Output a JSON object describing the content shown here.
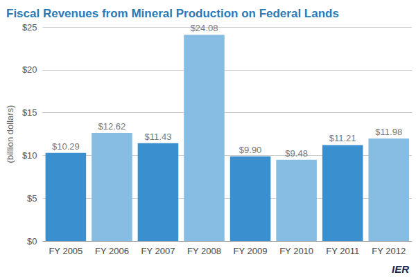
{
  "chart_data": {
    "type": "bar",
    "title": "Fiscal Revenues from Mineral Production on Federal Lands",
    "y_label": "(billion dollars)",
    "categories": [
      "FY 2005",
      "FY 2006",
      "FY 2007",
      "FY 2008",
      "FY 2009",
      "FY 2010",
      "FY 2011",
      "FY 2012"
    ],
    "values": [
      10.29,
      12.62,
      11.43,
      24.08,
      9.9,
      9.48,
      11.21,
      11.98
    ],
    "value_labels": [
      "$10.29",
      "$12.62",
      "$11.43",
      "$24.08",
      "$9.90",
      "$9.48",
      "$11.21",
      "$11.98"
    ],
    "colors": [
      "#3a8fcf",
      "#88bde3",
      "#3a8fcf",
      "#88bde3",
      "#3a8fcf",
      "#88bde3",
      "#3a8fcf",
      "#88bde3"
    ],
    "ylim": [
      0,
      25
    ],
    "yticks": [
      {
        "value": 0,
        "label": "$0"
      },
      {
        "value": 5,
        "label": "$5"
      },
      {
        "value": 10,
        "label": "$10"
      },
      {
        "value": 15,
        "label": "$15"
      },
      {
        "value": 20,
        "label": "$20"
      },
      {
        "value": 25,
        "label": "$25"
      }
    ],
    "grid": true,
    "data_labels": true,
    "logo": "IER"
  }
}
